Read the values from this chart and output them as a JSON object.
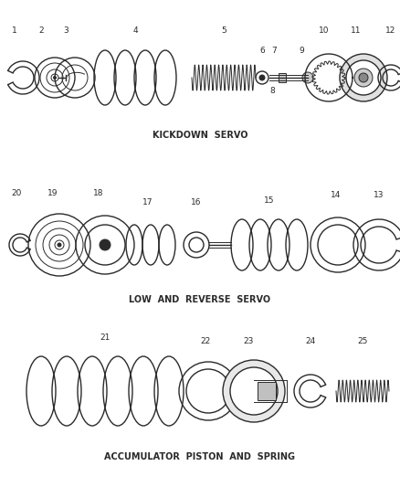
{
  "bg_color": "#ffffff",
  "line_color": "#2a2a2a",
  "section_labels": [
    "KICKDOWN  SERVO",
    "LOW  AND  REVERSE  SERVO",
    "ACCUMULATOR  PISTON  AND  SPRING"
  ],
  "label_fontsize": 7.0,
  "pnum_fontsize": 6.5
}
